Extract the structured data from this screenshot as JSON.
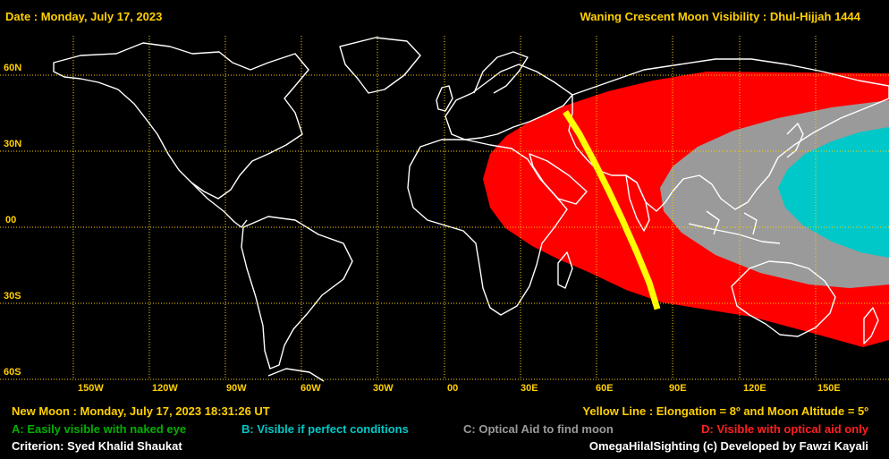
{
  "header": {
    "date_label": "Date : Monday, July 17, 2023",
    "map_title": "Waning Crescent Moon Visibility : Dhul-Hijjah 1444"
  },
  "lat_labels": [
    "60N",
    "30N",
    "00",
    "30S",
    "60S"
  ],
  "lon_labels": [
    "150W",
    "120W",
    "90W",
    "60W",
    "30W",
    "00",
    "30E",
    "60E",
    "90E",
    "120E",
    "150E"
  ],
  "footer": {
    "new_moon": "New Moon : Monday, July 17, 2023  18:31:26  UT",
    "yellow_line": "Yellow Line : Elongation = 8º and Moon Altitude = 5º",
    "legend_a": "A: Easily visible with naked eye",
    "legend_b": "B: Visible if perfect conditions",
    "legend_c": "C: Optical Aid to find moon",
    "legend_d": "D: Visible with optical aid only",
    "criterion": "Criterion: Syed Khalid Shaukat",
    "credit": "OmegaHilalSighting  (c)  Developed by Fawzi Kayali"
  },
  "colors": {
    "zone_a": "#00b000",
    "zone_b": "#00c8c8",
    "zone_c": "#9a9a9a",
    "zone_d": "#ff0000",
    "yellow_line": "#ffff00",
    "grid": "#ffd000",
    "coastline": "#ffffff"
  }
}
